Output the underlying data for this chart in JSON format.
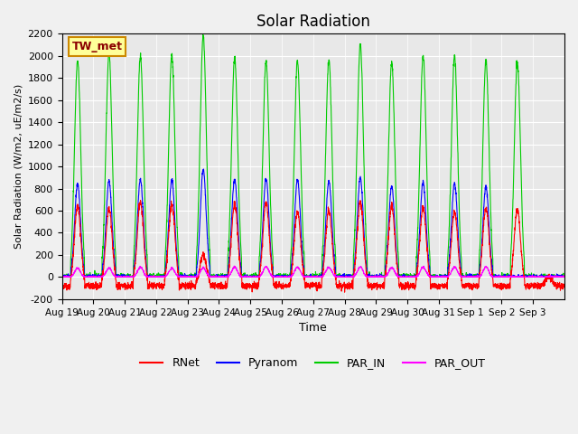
{
  "title": "Solar Radiation",
  "xlabel": "Time",
  "ylabel": "Solar Radiation (W/m2, uE/m2/s)",
  "ylim": [
    -200,
    2200
  ],
  "yticks": [
    -200,
    0,
    200,
    400,
    600,
    800,
    1000,
    1200,
    1400,
    1600,
    1800,
    2000,
    2200
  ],
  "xtick_labels": [
    "Aug 19",
    "Aug 20",
    "Aug 21",
    "Aug 22",
    "Aug 23",
    "Aug 24",
    "Aug 25",
    "Aug 26",
    "Aug 27",
    "Aug 28",
    "Aug 29",
    "Aug 30",
    "Aug 31",
    "Sep 1",
    "Sep 2",
    "Sep 3"
  ],
  "colors": {
    "RNet": "#ff0000",
    "Pyranom": "#0000ff",
    "PAR_IN": "#00cc00",
    "PAR_OUT": "#ff00ff"
  },
  "bg_color": "#e8e8e8",
  "fig_bg_color": "#f0f0f0",
  "annotation_text": "TW_met",
  "annotation_bg": "#ffff99",
  "annotation_border": "#cc8800",
  "num_days": 16,
  "day_peaks": {
    "PAR_IN": [
      1960,
      2020,
      2000,
      2010,
      2180,
      1980,
      1950,
      1950,
      1960,
      2100,
      1940,
      1990,
      2000,
      1950,
      1940,
      0
    ],
    "Pyranom": [
      840,
      870,
      880,
      880,
      970,
      890,
      890,
      880,
      870,
      900,
      820,
      860,
      850,
      820,
      0,
      0
    ],
    "RNet": [
      640,
      620,
      680,
      660,
      210,
      660,
      670,
      590,
      610,
      670,
      640,
      620,
      590,
      620,
      610,
      0
    ],
    "PAR_OUT": [
      80,
      80,
      90,
      80,
      85,
      90,
      95,
      90,
      90,
      90,
      85,
      90,
      90,
      90,
      0,
      0
    ]
  },
  "night_values": {
    "RNet": -80,
    "Pyranom": 0,
    "PAR_IN": 0,
    "PAR_OUT": 0
  }
}
